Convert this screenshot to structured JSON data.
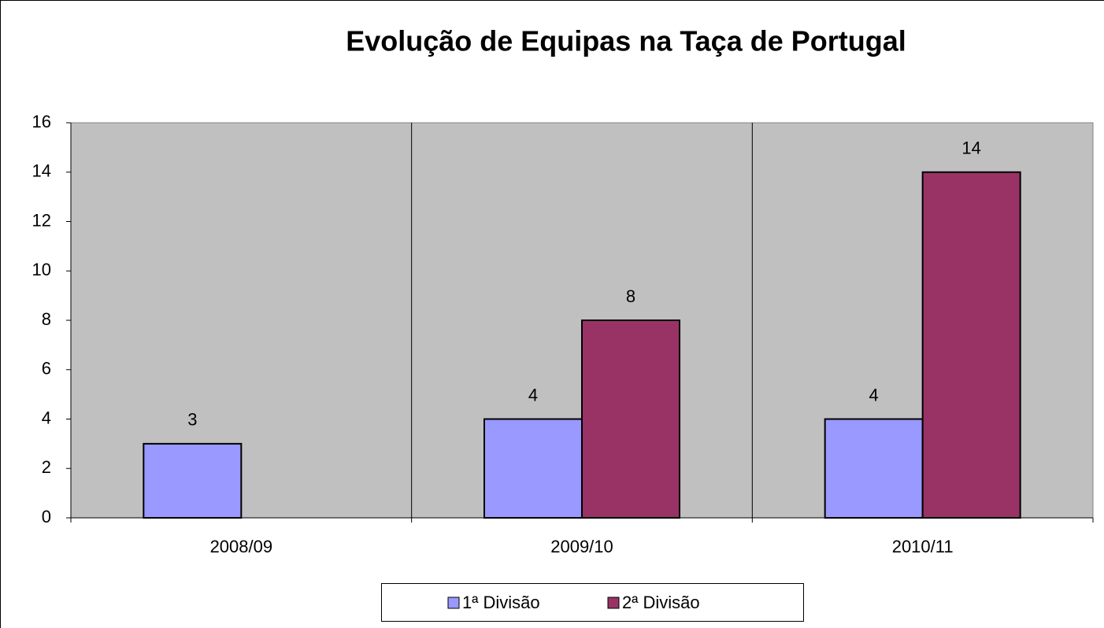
{
  "chart_data": {
    "type": "bar",
    "title": "Evolução de Equipas na Taça de Portugal",
    "categories": [
      "2008/09",
      "2009/10",
      "2010/11"
    ],
    "series": [
      {
        "name": "1ª Divisão",
        "color": "#9999ff",
        "values": [
          3,
          4,
          4
        ]
      },
      {
        "name": "2ª Divisão",
        "color": "#993366",
        "values": [
          null,
          8,
          14
        ]
      }
    ],
    "ylim": [
      0,
      16
    ],
    "yticks": [
      0,
      2,
      4,
      6,
      8,
      10,
      12,
      14,
      16
    ],
    "grid": false,
    "legend": "bottom"
  }
}
